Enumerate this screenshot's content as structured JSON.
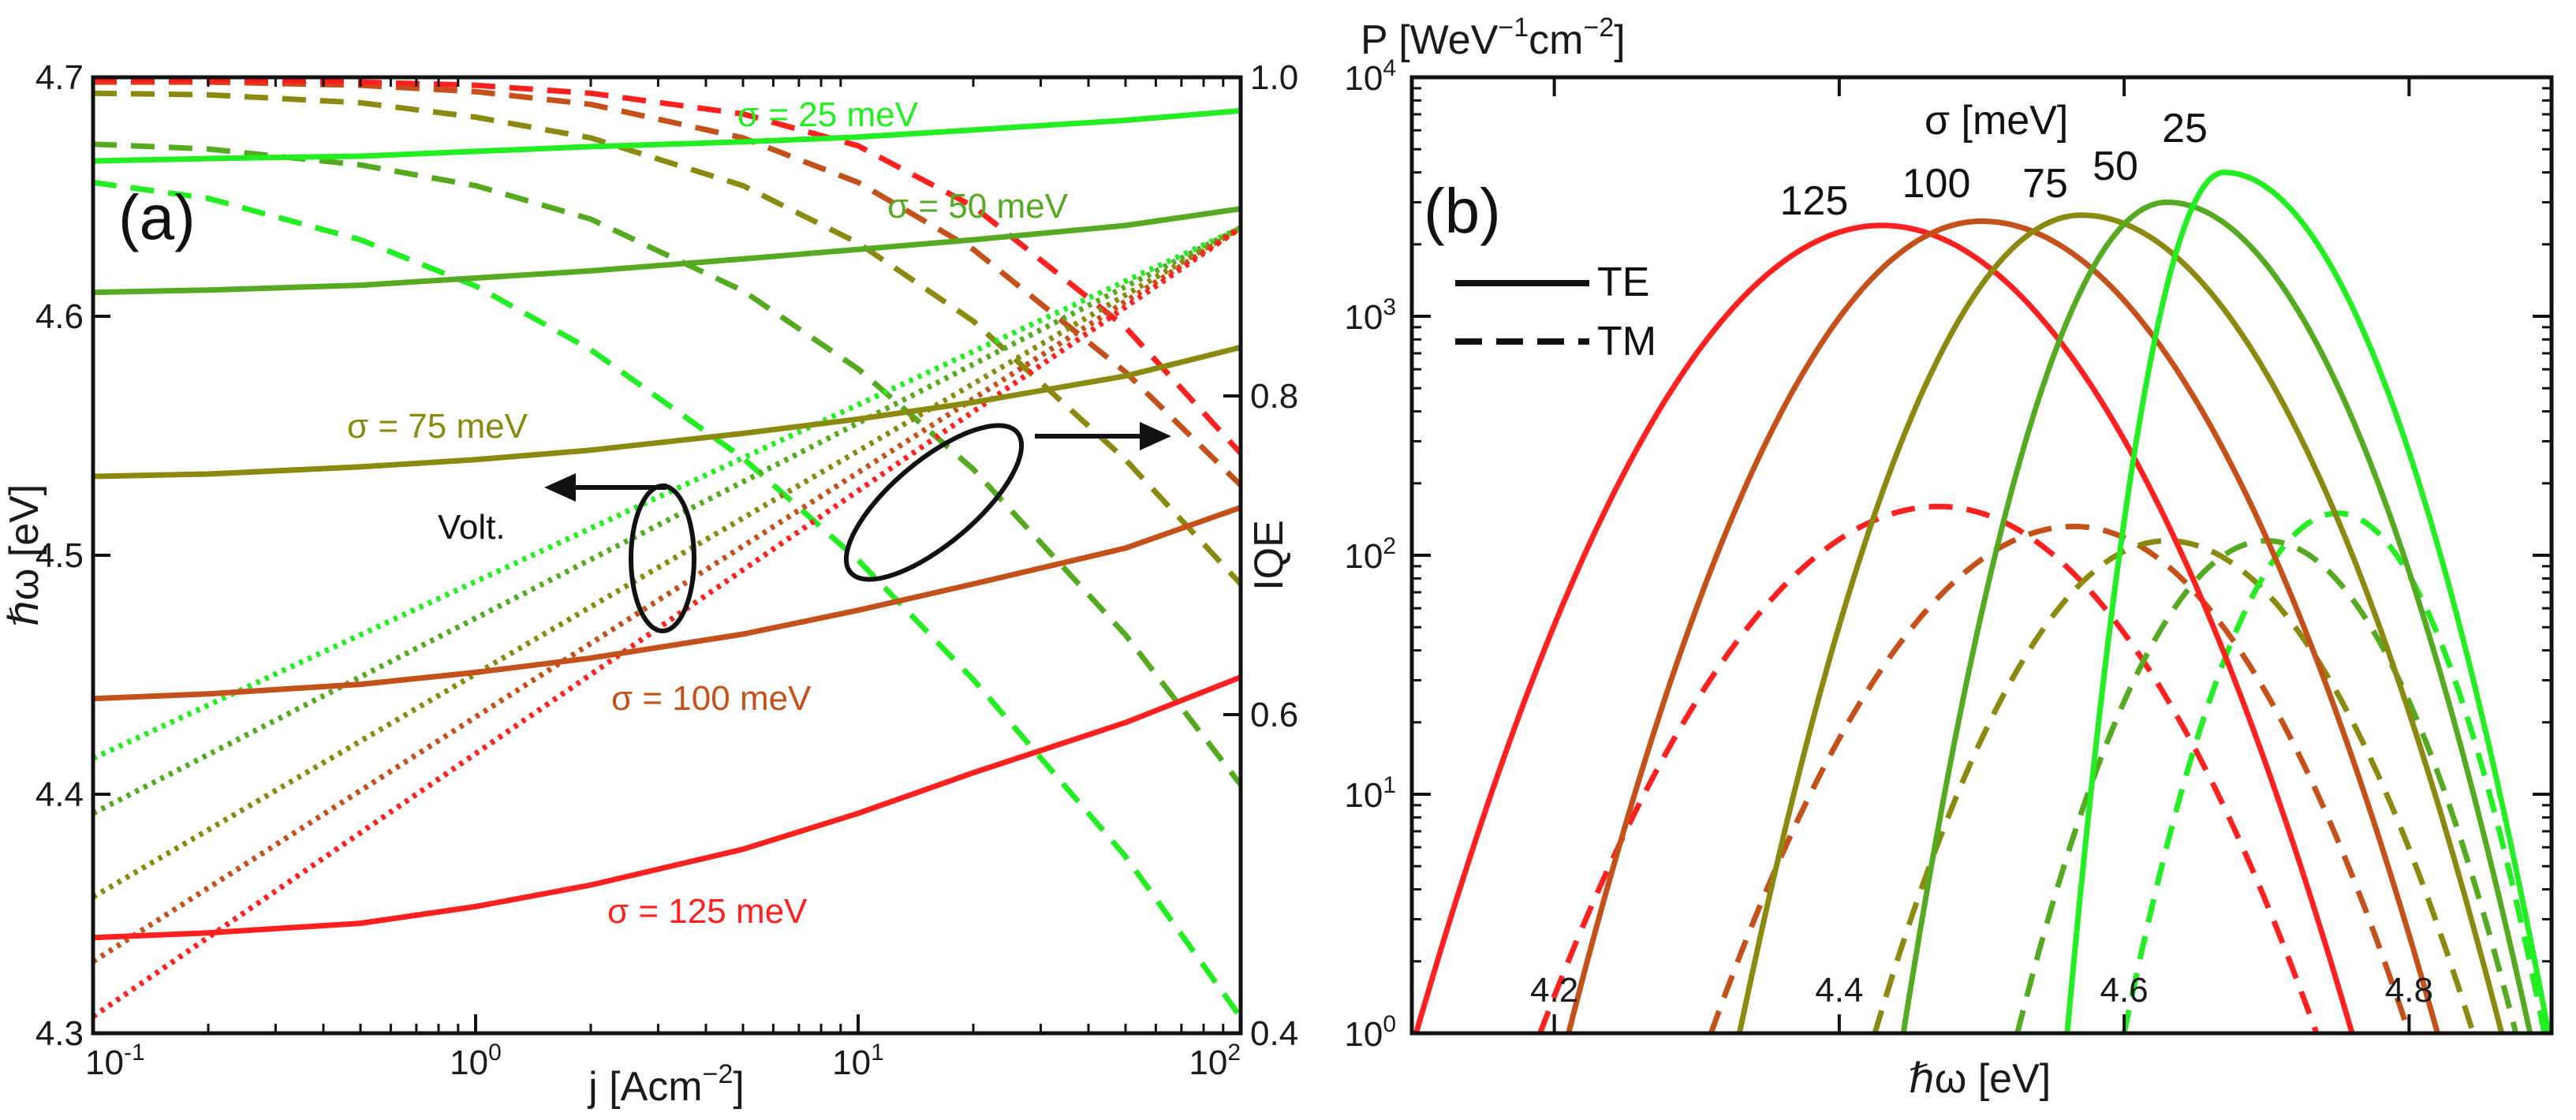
{
  "colors": {
    "s25": "#22ee22",
    "s50": "#55aa22",
    "s75": "#8a8a10",
    "s100": "#c4501a",
    "s125": "#ff2020",
    "ink": "#111111"
  },
  "chart_data": [
    {
      "panel": "a",
      "type": "line",
      "panel_label": "(a)",
      "xlabel": "j [Acm",
      "xlabel_sup": "−2",
      "xlabel_end": "]",
      "ylabel": "ℏω [eV]",
      "y2label": "IQE",
      "xscale": "log",
      "xlim": [
        0.1,
        100
      ],
      "ylim": [
        4.3,
        4.7
      ],
      "y2lim": [
        0.4,
        1.0
      ],
      "x_ticks": [
        {
          "base": "10",
          "exp": "-1"
        },
        {
          "base": "10",
          "exp": "0"
        },
        {
          "base": "10",
          "exp": "1"
        },
        {
          "base": "10",
          "exp": "2"
        }
      ],
      "y_ticks": [
        "4.3",
        "4.4",
        "4.5",
        "4.6",
        "4.7"
      ],
      "y2_ticks": [
        "0.4",
        "0.6",
        "0.8",
        "1.0"
      ],
      "annotations": {
        "volt": "Volt.",
        "s25": "σ = 25 meV",
        "s50": "σ = 50 meV",
        "s75": "σ = 75 meV",
        "s100": "σ = 100 meV",
        "s125": "σ = 125 meV"
      },
      "x": [
        0.1,
        0.2,
        0.5,
        1,
        2,
        5,
        10,
        20,
        50,
        100
      ],
      "photon_energy_series": [
        {
          "name": "σ = 25 meV",
          "color_key": "s25",
          "values": [
            4.665,
            4.666,
            4.667,
            4.669,
            4.671,
            4.673,
            4.675,
            4.678,
            4.682,
            4.686
          ]
        },
        {
          "name": "σ = 50 meV",
          "color_key": "s50",
          "values": [
            4.61,
            4.611,
            4.613,
            4.616,
            4.619,
            4.624,
            4.628,
            4.632,
            4.638,
            4.645
          ]
        },
        {
          "name": "σ = 75 meV",
          "color_key": "s75",
          "values": [
            4.533,
            4.534,
            4.537,
            4.54,
            4.544,
            4.551,
            4.557,
            4.564,
            4.575,
            4.587
          ]
        },
        {
          "name": "σ = 100 meV",
          "color_key": "s100",
          "values": [
            4.44,
            4.442,
            4.446,
            4.451,
            4.457,
            4.467,
            4.477,
            4.488,
            4.503,
            4.52
          ]
        },
        {
          "name": "σ = 125 meV",
          "color_key": "s125",
          "values": [
            4.34,
            4.342,
            4.346,
            4.353,
            4.362,
            4.377,
            4.392,
            4.409,
            4.43,
            4.449
          ]
        }
      ],
      "voltage_series_x": [
        0.1,
        100
      ],
      "voltage_series": [
        {
          "name": "σ = 25 meV",
          "color_key": "s25",
          "values": [
            4.415,
            4.637
          ]
        },
        {
          "name": "σ = 50 meV",
          "color_key": "s50",
          "values": [
            4.392,
            4.637
          ]
        },
        {
          "name": "σ = 75 meV",
          "color_key": "s75",
          "values": [
            4.357,
            4.637
          ]
        },
        {
          "name": "σ = 100 meV",
          "color_key": "s100",
          "values": [
            4.33,
            4.637
          ]
        },
        {
          "name": "σ = 125 meV",
          "color_key": "s125",
          "values": [
            4.307,
            4.637
          ]
        }
      ],
      "iqe_x": [
        0.1,
        0.2,
        0.5,
        1,
        2,
        5,
        10,
        20,
        50,
        100
      ],
      "iqe_series": [
        {
          "name": "σ = 25 meV",
          "color_key": "s25",
          "values": [
            0.934,
            0.924,
            0.898,
            0.869,
            0.829,
            0.761,
            0.697,
            0.622,
            0.511,
            0.41
          ]
        },
        {
          "name": "σ = 50 meV",
          "color_key": "s50",
          "values": [
            0.958,
            0.955,
            0.945,
            0.932,
            0.911,
            0.866,
            0.817,
            0.754,
            0.65,
            0.556
          ]
        },
        {
          "name": "σ = 75 meV",
          "color_key": "s75",
          "values": [
            0.99,
            0.989,
            0.984,
            0.975,
            0.962,
            0.932,
            0.896,
            0.847,
            0.76,
            0.682
          ]
        },
        {
          "name": "σ = 100 meV",
          "color_key": "s100",
          "values": [
            0.997,
            0.997,
            0.995,
            0.991,
            0.983,
            0.962,
            0.934,
            0.892,
            0.815,
            0.744
          ]
        },
        {
          "name": "σ = 125 meV",
          "color_key": "s125",
          "values": [
            0.998,
            0.998,
            0.997,
            0.995,
            0.99,
            0.977,
            0.957,
            0.919,
            0.843,
            0.764
          ]
        }
      ]
    },
    {
      "panel": "b",
      "type": "line",
      "panel_label": "(b)",
      "xlabel": "ℏω [eV]",
      "ylabel": "P [WeV",
      "ylabel_sup": "−1",
      "ylabel_mid": "cm",
      "ylabel_sup2": "−2",
      "ylabel_end": "]",
      "yscale": "log",
      "xlim": [
        4.1,
        4.9
      ],
      "ylim": [
        1,
        10000
      ],
      "x_ticks": [
        "4.2",
        "4.4",
        "4.6",
        "4.8"
      ],
      "y_ticks": [
        {
          "base": "10",
          "exp": "0"
        },
        {
          "base": "10",
          "exp": "1"
        },
        {
          "base": "10",
          "exp": "2"
        },
        {
          "base": "10",
          "exp": "3"
        },
        {
          "base": "10",
          "exp": "4"
        }
      ],
      "legend": {
        "title": "σ [meV]",
        "te": "TE",
        "tm": "TM"
      },
      "peak_labels": [
        {
          "text": "125",
          "color_key": "s125"
        },
        {
          "text": "100",
          "color_key": "s100"
        },
        {
          "text": "75",
          "color_key": "s75"
        },
        {
          "text": "50",
          "color_key": "s50"
        },
        {
          "text": "25",
          "color_key": "s25"
        }
      ],
      "te_series": [
        {
          "name": "125",
          "color_key": "s125",
          "peak_x": 4.43,
          "peak_y": 2400,
          "x_start": 4.103,
          "x_end": 4.76
        },
        {
          "name": "100",
          "color_key": "s100",
          "peak_x": 4.5,
          "peak_y": 2500,
          "x_start": 4.21,
          "x_end": 4.82
        },
        {
          "name": "75",
          "color_key": "s75",
          "peak_x": 4.57,
          "peak_y": 2650,
          "x_start": 4.33,
          "x_end": 4.865
        },
        {
          "name": "50",
          "color_key": "s50",
          "peak_x": 4.63,
          "peak_y": 3000,
          "x_start": 4.445,
          "x_end": 4.885
        },
        {
          "name": "25",
          "color_key": "s25",
          "peak_x": 4.67,
          "peak_y": 4000,
          "x_start": 4.56,
          "x_end": 4.898
        }
      ],
      "tm_series": [
        {
          "name": "125",
          "color_key": "s125",
          "peak_x": 4.47,
          "peak_y": 160,
          "x_start": 4.19,
          "x_end": 4.735
        },
        {
          "name": "100",
          "color_key": "s100",
          "peak_x": 4.565,
          "peak_y": 132,
          "x_start": 4.31,
          "x_end": 4.8
        },
        {
          "name": "75",
          "color_key": "s75",
          "peak_x": 4.63,
          "peak_y": 115,
          "x_start": 4.425,
          "x_end": 4.845
        },
        {
          "name": "50",
          "color_key": "s50",
          "peak_x": 4.7,
          "peak_y": 115,
          "x_start": 4.525,
          "x_end": 4.875
        },
        {
          "name": "25",
          "color_key": "s25",
          "peak_x": 4.75,
          "peak_y": 150,
          "x_start": 4.6,
          "x_end": 4.895
        }
      ]
    }
  ]
}
